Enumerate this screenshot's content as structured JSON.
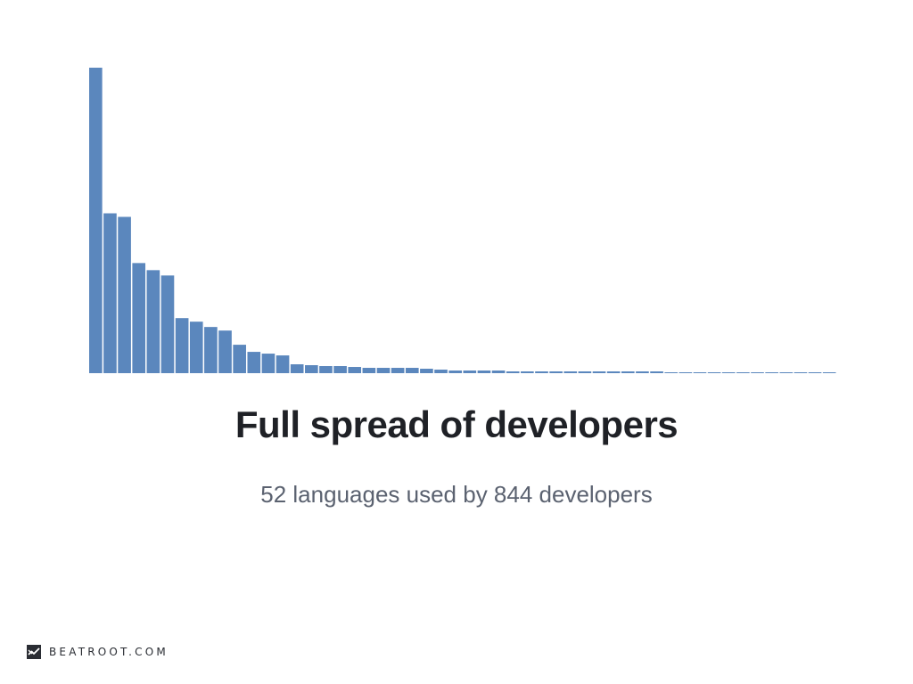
{
  "chart_data": {
    "type": "bar",
    "title": "Full spread of developers",
    "subtitle": "52 languages used by 844 developers",
    "bar_color": "#5b87bd",
    "grid": false,
    "ylim": [
      0,
      172
    ],
    "values": [
      172,
      90,
      88,
      62,
      58,
      55,
      31,
      29,
      26,
      24,
      16,
      12,
      11,
      10,
      5,
      4.5,
      4,
      4,
      3.5,
      3,
      3,
      3,
      3,
      2.5,
      2,
      1.5,
      1.5,
      1.5,
      1.5,
      1,
      1,
      1,
      1,
      1,
      1,
      1,
      1,
      1,
      1,
      1,
      0.5,
      0.5,
      0.5,
      0.5,
      0.5,
      0.5,
      0.5,
      0.5,
      0.5,
      0.5,
      0.5,
      0.5
    ]
  },
  "brand": {
    "text": "BEATROOT.COM",
    "icon": "beatroot-logo-icon",
    "color": "#2a2d33"
  }
}
